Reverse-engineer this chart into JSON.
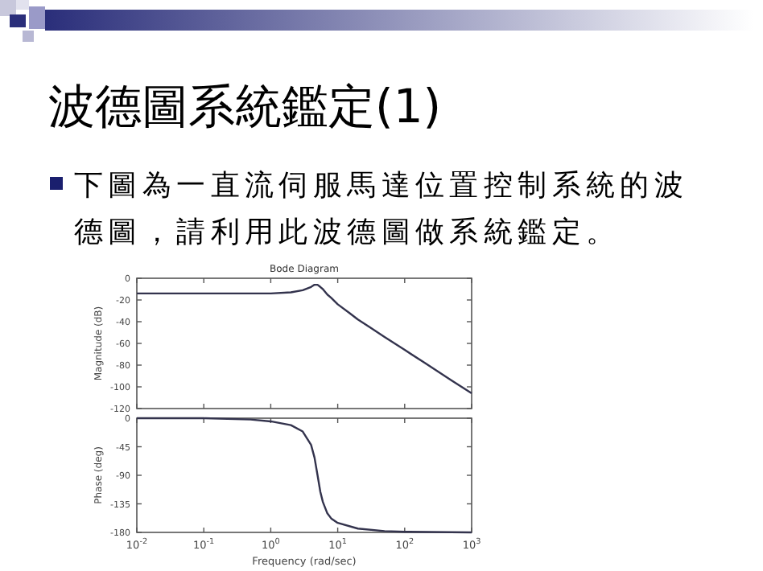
{
  "chart_data": [
    {
      "type": "line",
      "title": "Bode Diagram",
      "ylabel": "Magnitude (dB)",
      "annotations": [
        "波德圖系統鑑定(1)",
        "下圖為一直流伺服馬達位置控制系統的波德圖，請利用此波德圖做系統鑑定。"
      ],
      "log": "x",
      "xlim": [
        0.01,
        1000
      ],
      "xticks": [
        {
          "value": 0.01,
          "label": null
        },
        {
          "value": 0.1,
          "label": null
        },
        {
          "value": 1,
          "label": null
        },
        {
          "value": 10,
          "label": null
        },
        {
          "value": 100,
          "label": null
        },
        {
          "value": 1000,
          "label": null
        }
      ],
      "tick_labels": "y",
      "ylim": [
        -120,
        0
      ],
      "yticks": [
        0,
        -20,
        -40,
        -60,
        -80,
        -100,
        -120
      ],
      "grid": false,
      "marker": "none",
      "line_style": "solid",
      "series": [
        {
          "color": "#33334d",
          "x": [
            0.01,
            0.1,
            0.5,
            1,
            2,
            3,
            4,
            4.5,
            5,
            5.5,
            6,
            7,
            8,
            10,
            15,
            20,
            30,
            50,
            100,
            200,
            500,
            1000
          ],
          "values": [
            -14,
            -14,
            -14,
            -14,
            -13,
            -11,
            -8,
            -6,
            -6,
            -8,
            -10,
            -15,
            -18,
            -24,
            -32,
            -38,
            -45,
            -54,
            -66,
            -78,
            -94,
            -106
          ]
        }
      ]
    },
    {
      "type": "line",
      "xlabel": "Frequency (rad/sec)",
      "ylabel": "Phase (deg)",
      "log": "x",
      "xlim": [
        0.01,
        1000
      ],
      "xticks": [
        {
          "value": 0.01,
          "label": "10$^{-2}$"
        },
        {
          "value": 0.1,
          "label": "10$^{-1}$"
        },
        {
          "value": 1,
          "label": "10$^{0}$"
        },
        {
          "value": 10,
          "label": "10$^{1}$"
        },
        {
          "value": 100,
          "label": "10$^{2}$"
        },
        {
          "value": 1000,
          "label": "10$^{3}$"
        }
      ],
      "ylim": [
        -180,
        0
      ],
      "yticks": [
        0,
        -45,
        -90,
        -135,
        -180
      ],
      "grid": false,
      "marker": "none",
      "line_style": "solid",
      "series": [
        {
          "color": "#33334d",
          "x": [
            0.01,
            0.1,
            0.5,
            1,
            2,
            3,
            4,
            4.5,
            5,
            5.5,
            6,
            7,
            8,
            10,
            20,
            50,
            100,
            1000
          ],
          "values": [
            0,
            0,
            -2,
            -5,
            -11,
            -21,
            -42,
            -62,
            -90,
            -116,
            -132,
            -150,
            -158,
            -165,
            -174,
            -178,
            -179,
            -180
          ]
        }
      ]
    }
  ]
}
